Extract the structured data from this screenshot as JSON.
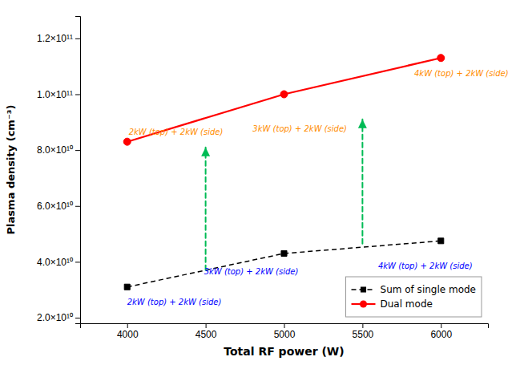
{
  "chart_data": {
    "type": "line",
    "xlabel": "Total RF power (W)",
    "ylabel": "Plasma density (cm⁻³)",
    "x": [
      4000,
      5000,
      6000
    ],
    "series": [
      {
        "name": "Sum of single mode",
        "color": "black",
        "marker": "square",
        "line_style": "dashed",
        "values": [
          31000000000.0,
          43000000000.0,
          47500000000.0
        ]
      },
      {
        "name": "Dual mode",
        "color": "red",
        "marker": "circle",
        "line_style": "solid",
        "values": [
          83000000000.0,
          100000000000.0,
          113000000000.0
        ]
      }
    ],
    "arrows": [
      {
        "x": 4500,
        "y_start": 37000000000.0,
        "y_end": 81000000000.0,
        "color": "#00BB55"
      },
      {
        "x": 5500,
        "y_start": 46500000000.0,
        "y_end": 91000000000.0,
        "color": "#00BB55"
      }
    ],
    "annotations": [
      {
        "text": "2kW (top) + 2kW (side)",
        "x": 4010,
        "y": 85500000000.0,
        "color": "#FF8C00"
      },
      {
        "text": "3kW (top) + 2kW (side)",
        "x": 4800,
        "y": 86500000000.0,
        "color": "#FF8C00"
      },
      {
        "text": "4kW (top) + 2kW (side)",
        "x": 5830,
        "y": 106500000000.0,
        "color": "#FF8C00"
      },
      {
        "text": "2kW (top) + 2kW (side)",
        "x": 4000,
        "y": 24500000000.0,
        "color": "blue"
      },
      {
        "text": "3kW (top) + 2kW (side)",
        "x": 4490,
        "y": 35500000000.0,
        "color": "blue"
      },
      {
        "text": "4kW (top) + 2kW (side)",
        "x": 5600,
        "y": 37500000000.0,
        "color": "blue"
      }
    ],
    "xlim": [
      3700,
      6300
    ],
    "xticks": [
      4000,
      4500,
      5000,
      5500,
      6000
    ],
    "ylim": [
      18000000000.0,
      128000000000.0
    ],
    "yticks": [
      {
        "value": 20000000000.0,
        "label": "2.0×10¹⁰"
      },
      {
        "value": 40000000000.0,
        "label": "4.0×10¹⁰"
      },
      {
        "value": 60000000000.0,
        "label": "6.0×10¹⁰"
      },
      {
        "value": 80000000000.0,
        "label": "8.0×10¹⁰"
      },
      {
        "value": 100000000000.0,
        "label": "1.0×10¹¹"
      },
      {
        "value": 120000000000.0,
        "label": "1.2×10¹¹"
      }
    ],
    "grid": false,
    "legend": "lower right"
  }
}
